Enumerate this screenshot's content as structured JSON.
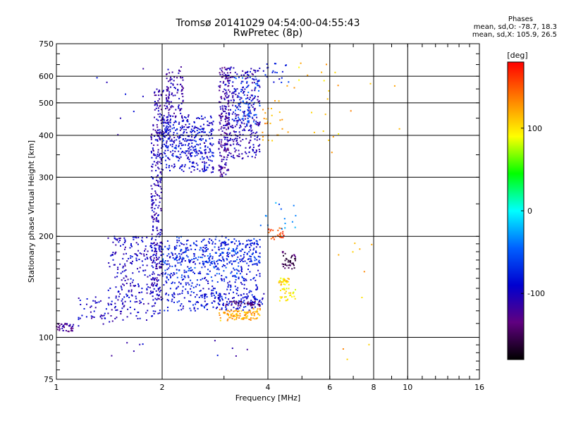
{
  "header": {
    "title": "Tromsø 20141029 04:54:00-04:55:43",
    "subtitle": "RwPretec (8p)",
    "stats_title": "Phases",
    "stats_o": "mean, sd,O: -78.7, 18.3",
    "stats_x": "mean, sd,X: 105.9, 26.5"
  },
  "chart_data": {
    "type": "scatter",
    "title": "Tromsø 20141029 04:54:00-04:55:43",
    "subtitle": "RwPretec (8p)",
    "xlabel": "Frequency [MHz]",
    "ylabel": "Stationary phase Virtual Height [km]",
    "x_scale": "log",
    "y_scale": "log",
    "xlim": [
      1,
      16
    ],
    "ylim": [
      75,
      750
    ],
    "x_ticks": [
      1,
      2,
      4,
      6,
      8,
      10,
      16
    ],
    "x_tick_labels": [
      "1",
      "2",
      "4",
      "6",
      "8",
      "10",
      "16"
    ],
    "y_ticks": [
      75,
      100,
      200,
      300,
      400,
      500,
      600,
      750
    ],
    "y_tick_labels": [
      "75",
      "100",
      "200",
      "300",
      "400",
      "500",
      "600",
      "750"
    ],
    "grid": true,
    "colorbar": {
      "label": "[deg]",
      "range": [
        -180,
        180
      ],
      "tick_values": [
        100,
        0,
        -100
      ],
      "tick_labels": [
        "100",
        "0",
        "-100"
      ],
      "colors": [
        "#ff0000",
        "#ff8000",
        "#ffff00",
        "#00ff00",
        "#00ffff",
        "#0060ff",
        "#0000d0",
        "#600080",
        "#000000"
      ]
    },
    "clusters": [
      {
        "x": [
          1.0,
          1.12
        ],
        "y": [
          104,
          110
        ],
        "phase": -120,
        "n": 40
      },
      {
        "x": [
          1.15,
          1.5
        ],
        "y": [
          108,
          132
        ],
        "phase": -100,
        "n": 50
      },
      {
        "x": [
          1.4,
          2.0
        ],
        "y": [
          112,
          200
        ],
        "phase": -100,
        "n": 260
      },
      {
        "x": [
          1.86,
          2.0
        ],
        "y": [
          130,
          430
        ],
        "phase": -105,
        "n": 260
      },
      {
        "x": [
          1.9,
          2.1
        ],
        "y": [
          390,
          550
        ],
        "phase": -110,
        "n": 90
      },
      {
        "x": [
          2.0,
          2.8
        ],
        "y": [
          310,
          460
        ],
        "phase": -95,
        "n": 320
      },
      {
        "x": [
          2.0,
          2.8
        ],
        "y": [
          335,
          420
        ],
        "phase": -80,
        "n": 90
      },
      {
        "x": [
          2.05,
          2.3
        ],
        "y": [
          450,
          640
        ],
        "phase": -110,
        "n": 90
      },
      {
        "x": [
          2.0,
          3.8
        ],
        "y": [
          120,
          195
        ],
        "phase": -85,
        "n": 500
      },
      {
        "x": [
          2.2,
          3.8
        ],
        "y": [
          165,
          200
        ],
        "phase": -70,
        "n": 120
      },
      {
        "x": [
          2.0,
          3.4
        ],
        "y": [
          150,
          185
        ],
        "phase": -55,
        "n": 80
      },
      {
        "x": [
          2.5,
          3.9
        ],
        "y": [
          125,
          135
        ],
        "phase": -90,
        "n": 60
      },
      {
        "x": [
          2.9,
          3.1
        ],
        "y": [
          300,
          640
        ],
        "phase": -120,
        "n": 170
      },
      {
        "x": [
          3.0,
          3.8
        ],
        "y": [
          340,
          640
        ],
        "phase": -105,
        "n": 330
      },
      {
        "x": [
          3.2,
          3.8
        ],
        "y": [
          430,
          600
        ],
        "phase": -60,
        "n": 80
      },
      {
        "x": [
          2.9,
          3.8
        ],
        "y": [
          112,
          122
        ],
        "phase": 120,
        "n": 100
      },
      {
        "x": [
          3.0,
          3.8
        ],
        "y": [
          124,
          128
        ],
        "phase": -140,
        "n": 40
      },
      {
        "x": [
          4.0,
          4.45
        ],
        "y": [
          195,
          212
        ],
        "phase": 150,
        "n": 25
      },
      {
        "x": [
          4.4,
          4.8
        ],
        "y": [
          160,
          180
        ],
        "phase": -150,
        "n": 40
      },
      {
        "x": [
          4.3,
          4.6
        ],
        "y": [
          143,
          150
        ],
        "phase": 105,
        "n": 30
      },
      {
        "x": [
          4.3,
          4.8
        ],
        "y": [
          128,
          140
        ],
        "phase": 95,
        "n": 30
      },
      {
        "x": [
          3.8,
          4.6
        ],
        "y": [
          575,
          660
        ],
        "phase": -80,
        "n": 20
      },
      {
        "x": [
          3.8,
          4.4
        ],
        "y": [
          380,
          510
        ],
        "phase": 120,
        "n": 25
      },
      {
        "x": [
          4.5,
          6.5
        ],
        "y": [
          380,
          660
        ],
        "phase": 110,
        "n": 20
      },
      {
        "x": [
          3.8,
          4.8
        ],
        "y": [
          210,
          255
        ],
        "phase": -40,
        "n": 15
      },
      {
        "x": [
          1.25,
          3.9
        ],
        "y": [
          88,
          98
        ],
        "phase": -100,
        "n": 10
      },
      {
        "x": [
          6.0,
          9.5
        ],
        "y": [
          80,
          660
        ],
        "phase": 120,
        "n": 16
      },
      {
        "x": [
          1.25,
          1.9
        ],
        "y": [
          380,
          640
        ],
        "phase": -100,
        "n": 8
      }
    ]
  }
}
